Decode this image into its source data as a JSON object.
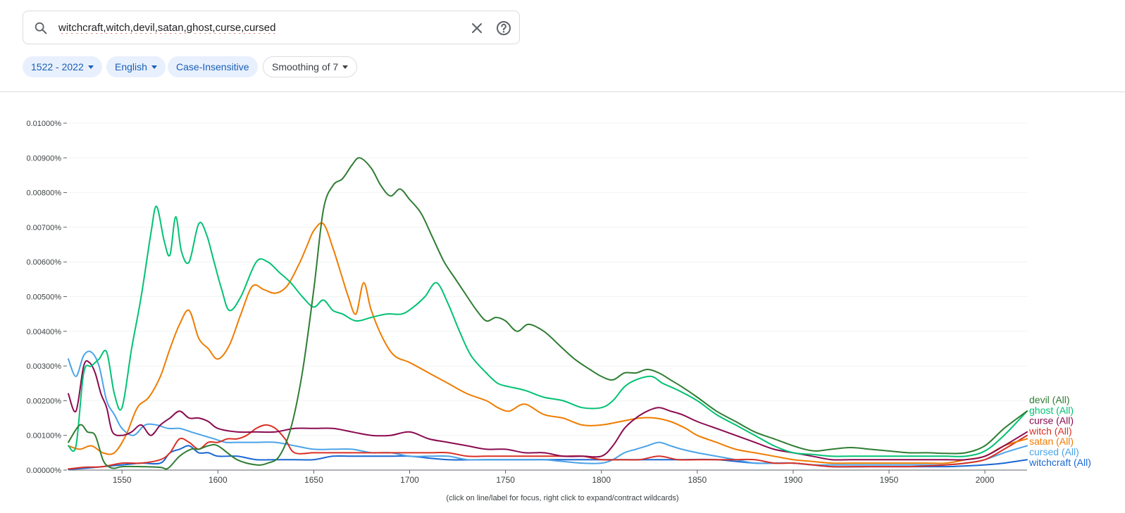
{
  "search": {
    "query": "witchcraft,witch,devil,satan,ghost,curse,cursed"
  },
  "filters": {
    "year_range": "1522 - 2022",
    "corpus": "English",
    "case": "Case-Insensitive",
    "smoothing": "Smoothing of 7"
  },
  "footer": {
    "note": "(click on line/label for focus, right click to expand/contract wildcards)"
  },
  "colors": {
    "witchcraft": "#1967d2",
    "witch": "#d93025",
    "devil": "#2e7d32",
    "satan": "#ef7c00",
    "ghost": "#00c274",
    "curse": "#8a0a4f",
    "cursed": "#4aa3e8"
  },
  "chart_data": {
    "type": "line",
    "xlim": [
      1522,
      2022
    ],
    "ylim": [
      0,
      0.01
    ],
    "x_ticks": [
      "1550",
      "1600",
      "1650",
      "1700",
      "1750",
      "1800",
      "1850",
      "1900",
      "1950",
      "2000"
    ],
    "y_ticks": [
      "0.00000%",
      "0.00100%",
      "0.00200%",
      "0.00300%",
      "0.00400%",
      "0.00500%",
      "0.00600%",
      "0.00700%",
      "0.00800%",
      "0.00900%",
      "0.01000%"
    ],
    "grid": true,
    "legend_placement": "right-end",
    "series": [
      {
        "name": "devil (All)",
        "x": [
          1522,
          1528,
          1532,
          1536,
          1540,
          1543,
          1546,
          1550,
          1560,
          1570,
          1574,
          1580,
          1586,
          1590,
          1595,
          1600,
          1610,
          1620,
          1626,
          1632,
          1638,
          1644,
          1650,
          1655,
          1660,
          1665,
          1670,
          1674,
          1680,
          1685,
          1690,
          1695,
          1700,
          1706,
          1712,
          1718,
          1724,
          1730,
          1735,
          1740,
          1745,
          1750,
          1756,
          1762,
          1770,
          1778,
          1786,
          1794,
          1800,
          1806,
          1812,
          1818,
          1824,
          1830,
          1836,
          1842,
          1850,
          1860,
          1870,
          1880,
          1890,
          1900,
          1906,
          1912,
          1920,
          1930,
          1940,
          1950,
          1960,
          1970,
          1980,
          1990,
          2000,
          2010,
          2022
        ],
        "y": [
          0.0008,
          0.0013,
          0.0011,
          0.001,
          0.0003,
          0.0001,
          5e-05,
          0.0001,
          0.0001,
          8e-05,
          5e-05,
          0.0004,
          0.0006,
          0.0006,
          0.0007,
          0.0007,
          0.0003,
          0.00015,
          0.0002,
          0.0004,
          0.0012,
          0.0028,
          0.0052,
          0.0075,
          0.0082,
          0.0084,
          0.0088,
          0.009,
          0.0087,
          0.0082,
          0.0079,
          0.0081,
          0.0078,
          0.0074,
          0.0067,
          0.006,
          0.0055,
          0.005,
          0.0046,
          0.0043,
          0.0044,
          0.0043,
          0.004,
          0.0042,
          0.004,
          0.0036,
          0.0032,
          0.0029,
          0.0027,
          0.0026,
          0.0028,
          0.0028,
          0.0029,
          0.0028,
          0.0026,
          0.0024,
          0.0021,
          0.0017,
          0.0014,
          0.0011,
          0.0009,
          0.0007,
          0.0006,
          0.00055,
          0.0006,
          0.00065,
          0.0006,
          0.00055,
          0.0005,
          0.0005,
          0.00048,
          0.0005,
          0.0007,
          0.0012,
          0.0017
        ]
      },
      {
        "name": "ghost (All)",
        "x": [
          1522,
          1526,
          1530,
          1534,
          1538,
          1542,
          1546,
          1550,
          1555,
          1560,
          1565,
          1568,
          1572,
          1575,
          1578,
          1581,
          1585,
          1590,
          1594,
          1598,
          1602,
          1606,
          1612,
          1620,
          1626,
          1632,
          1638,
          1644,
          1650,
          1655,
          1660,
          1665,
          1672,
          1680,
          1688,
          1696,
          1702,
          1708,
          1714,
          1720,
          1726,
          1732,
          1740,
          1746,
          1752,
          1760,
          1770,
          1780,
          1790,
          1800,
          1806,
          1812,
          1818,
          1826,
          1832,
          1840,
          1850,
          1860,
          1870,
          1880,
          1890,
          1900,
          1910,
          1920,
          1930,
          1940,
          1950,
          1960,
          1970,
          1980,
          1990,
          2000,
          2010,
          2022
        ],
        "y": [
          0.0007,
          0.0007,
          0.0028,
          0.003,
          0.0032,
          0.0034,
          0.0022,
          0.0018,
          0.0035,
          0.005,
          0.0068,
          0.0076,
          0.0066,
          0.0062,
          0.0073,
          0.0063,
          0.006,
          0.0071,
          0.0068,
          0.006,
          0.0052,
          0.0046,
          0.005,
          0.006,
          0.006,
          0.0057,
          0.0054,
          0.005,
          0.0047,
          0.0049,
          0.0046,
          0.0045,
          0.0043,
          0.0044,
          0.0045,
          0.0045,
          0.0047,
          0.005,
          0.0054,
          0.0048,
          0.004,
          0.0033,
          0.0028,
          0.0025,
          0.0024,
          0.0023,
          0.0021,
          0.002,
          0.0018,
          0.0018,
          0.002,
          0.0024,
          0.0026,
          0.0027,
          0.0025,
          0.0023,
          0.002,
          0.0016,
          0.0013,
          0.001,
          0.0007,
          0.0005,
          0.00045,
          0.0004,
          0.0004,
          0.0004,
          0.0004,
          0.0004,
          0.0004,
          0.0004,
          0.0004,
          0.00055,
          0.001,
          0.0017
        ]
      },
      {
        "name": "curse (All)",
        "x": [
          1522,
          1526,
          1530,
          1533,
          1536,
          1539,
          1542,
          1545,
          1550,
          1555,
          1560,
          1565,
          1570,
          1575,
          1580,
          1585,
          1590,
          1595,
          1600,
          1610,
          1620,
          1630,
          1640,
          1650,
          1660,
          1670,
          1680,
          1690,
          1700,
          1710,
          1720,
          1730,
          1740,
          1750,
          1760,
          1770,
          1780,
          1790,
          1800,
          1806,
          1812,
          1818,
          1824,
          1830,
          1836,
          1842,
          1850,
          1860,
          1870,
          1880,
          1890,
          1900,
          1910,
          1920,
          1930,
          1940,
          1950,
          1960,
          1970,
          1980,
          1990,
          2000,
          2010,
          2022
        ],
        "y": [
          0.0022,
          0.0017,
          0.003,
          0.0031,
          0.0028,
          0.0022,
          0.0018,
          0.0011,
          0.001,
          0.0011,
          0.0013,
          0.001,
          0.0013,
          0.0015,
          0.0017,
          0.0015,
          0.0015,
          0.0014,
          0.0012,
          0.0011,
          0.0011,
          0.0011,
          0.0012,
          0.0012,
          0.0012,
          0.0011,
          0.001,
          0.001,
          0.0011,
          0.0009,
          0.0008,
          0.0007,
          0.0006,
          0.0006,
          0.0005,
          0.0005,
          0.0004,
          0.0004,
          0.0004,
          0.0007,
          0.0012,
          0.0015,
          0.0017,
          0.0018,
          0.0017,
          0.0016,
          0.0014,
          0.0012,
          0.001,
          0.0008,
          0.0006,
          0.0005,
          0.0004,
          0.0003,
          0.0003,
          0.0003,
          0.0003,
          0.0003,
          0.0003,
          0.0003,
          0.0003,
          0.0004,
          0.0007,
          0.0011
        ]
      },
      {
        "name": "witch (All)",
        "x": [
          1522,
          1530,
          1540,
          1550,
          1560,
          1570,
          1575,
          1580,
          1585,
          1590,
          1595,
          1600,
          1605,
          1610,
          1615,
          1620,
          1625,
          1630,
          1635,
          1640,
          1650,
          1660,
          1670,
          1680,
          1690,
          1700,
          1710,
          1720,
          1730,
          1740,
          1750,
          1760,
          1770,
          1780,
          1790,
          1800,
          1810,
          1820,
          1830,
          1840,
          1850,
          1860,
          1870,
          1880,
          1890,
          1900,
          1910,
          1920,
          1930,
          1940,
          1950,
          1960,
          1970,
          1980,
          1990,
          2000,
          2010,
          2022
        ],
        "y": [
          3e-05,
          8e-05,
          0.0001,
          0.0002,
          0.0002,
          0.0003,
          0.0005,
          0.0009,
          0.0008,
          0.0006,
          0.0008,
          0.0008,
          0.0009,
          0.0009,
          0.001,
          0.0012,
          0.0013,
          0.0012,
          0.0009,
          0.0005,
          0.0005,
          0.0005,
          0.0005,
          0.0005,
          0.0005,
          0.0005,
          0.0005,
          0.0005,
          0.0004,
          0.0004,
          0.0004,
          0.0004,
          0.0004,
          0.0004,
          0.0004,
          0.0003,
          0.0003,
          0.0003,
          0.0004,
          0.0003,
          0.0003,
          0.0003,
          0.0003,
          0.0003,
          0.0002,
          0.0002,
          0.00015,
          0.0001,
          0.0001,
          0.0001,
          0.0001,
          0.0001,
          0.00012,
          0.00015,
          0.0002,
          0.0003,
          0.0006,
          0.001
        ]
      },
      {
        "name": "satan (All)",
        "x": [
          1522,
          1528,
          1534,
          1540,
          1546,
          1552,
          1558,
          1564,
          1570,
          1575,
          1580,
          1585,
          1590,
          1595,
          1600,
          1606,
          1612,
          1618,
          1624,
          1630,
          1636,
          1642,
          1646,
          1650,
          1655,
          1660,
          1664,
          1668,
          1672,
          1676,
          1680,
          1686,
          1692,
          1700,
          1710,
          1720,
          1730,
          1740,
          1746,
          1752,
          1760,
          1770,
          1780,
          1790,
          1800,
          1810,
          1820,
          1828,
          1836,
          1844,
          1850,
          1860,
          1870,
          1880,
          1890,
          1900,
          1910,
          1920,
          1930,
          1940,
          1950,
          1960,
          1970,
          1980,
          1990,
          2000,
          2010,
          2022
        ],
        "y": [
          0.0007,
          0.0006,
          0.0007,
          0.0005,
          0.0005,
          0.001,
          0.0018,
          0.0021,
          0.0027,
          0.0035,
          0.0042,
          0.0046,
          0.0038,
          0.0035,
          0.0032,
          0.0036,
          0.0045,
          0.0053,
          0.0052,
          0.0051,
          0.0053,
          0.0059,
          0.0064,
          0.0069,
          0.0071,
          0.0064,
          0.0057,
          0.005,
          0.0045,
          0.0054,
          0.0046,
          0.0038,
          0.0033,
          0.0031,
          0.0028,
          0.0025,
          0.0022,
          0.002,
          0.0018,
          0.0017,
          0.0019,
          0.0016,
          0.0015,
          0.0013,
          0.0013,
          0.0014,
          0.0015,
          0.0015,
          0.0014,
          0.0012,
          0.001,
          0.0008,
          0.0006,
          0.0005,
          0.0004,
          0.0003,
          0.00025,
          0.0002,
          0.0002,
          0.0002,
          0.0002,
          0.0002,
          0.0002,
          0.0002,
          0.0003,
          0.0004,
          0.0007,
          0.0009
        ]
      },
      {
        "name": "cursed (All)",
        "x": [
          1522,
          1526,
          1530,
          1534,
          1538,
          1542,
          1546,
          1550,
          1556,
          1562,
          1568,
          1574,
          1580,
          1586,
          1592,
          1598,
          1604,
          1610,
          1620,
          1630,
          1640,
          1650,
          1660,
          1670,
          1680,
          1690,
          1700,
          1710,
          1720,
          1730,
          1740,
          1750,
          1760,
          1770,
          1780,
          1790,
          1800,
          1806,
          1812,
          1818,
          1824,
          1830,
          1836,
          1842,
          1850,
          1860,
          1870,
          1880,
          1890,
          1900,
          1910,
          1920,
          1930,
          1940,
          1950,
          1960,
          1970,
          1980,
          1990,
          2000,
          2010,
          2022
        ],
        "y": [
          0.0032,
          0.0027,
          0.0033,
          0.0034,
          0.003,
          0.002,
          0.0016,
          0.0012,
          0.001,
          0.0013,
          0.0013,
          0.0012,
          0.0012,
          0.0011,
          0.001,
          0.0009,
          0.0008,
          0.0008,
          0.0008,
          0.0008,
          0.0007,
          0.0006,
          0.0006,
          0.0006,
          0.0005,
          0.0005,
          0.0004,
          0.0004,
          0.0004,
          0.0003,
          0.0003,
          0.0003,
          0.0003,
          0.0003,
          0.00025,
          0.0002,
          0.0002,
          0.0003,
          0.0005,
          0.0006,
          0.0007,
          0.0008,
          0.0007,
          0.0006,
          0.0005,
          0.0004,
          0.0003,
          0.0002,
          0.0002,
          0.0002,
          0.00015,
          0.00015,
          0.00015,
          0.00015,
          0.00015,
          0.00015,
          0.00015,
          0.00015,
          0.0002,
          0.0003,
          0.0005,
          0.0007
        ]
      },
      {
        "name": "witchcraft (All)",
        "x": [
          1522,
          1530,
          1540,
          1550,
          1560,
          1570,
          1575,
          1580,
          1585,
          1590,
          1595,
          1600,
          1610,
          1620,
          1630,
          1640,
          1650,
          1660,
          1670,
          1680,
          1690,
          1700,
          1720,
          1740,
          1760,
          1780,
          1800,
          1820,
          1840,
          1860,
          1880,
          1900,
          1920,
          1940,
          1960,
          1980,
          1990,
          2000,
          2010,
          2022
        ],
        "y": [
          2e-05,
          5e-05,
          0.0001,
          0.00015,
          0.0002,
          0.0002,
          0.0005,
          0.0006,
          0.0007,
          0.0005,
          0.0005,
          0.0004,
          0.0004,
          0.0003,
          0.0003,
          0.0003,
          0.0003,
          0.0004,
          0.0004,
          0.0004,
          0.0004,
          0.0004,
          0.0003,
          0.0003,
          0.0003,
          0.0003,
          0.0003,
          0.0003,
          0.0003,
          0.0003,
          0.0002,
          0.0002,
          0.0001,
          0.0001,
          0.0001,
          0.0001,
          0.00012,
          0.00015,
          0.0002,
          0.0003
        ]
      }
    ],
    "legend": [
      {
        "label": "devil (All)",
        "key": "devil"
      },
      {
        "label": "ghost (All)",
        "key": "ghost"
      },
      {
        "label": "curse (All)",
        "key": "curse"
      },
      {
        "label": "witch (All)",
        "key": "witch"
      },
      {
        "label": "satan (All)",
        "key": "satan"
      },
      {
        "label": "cursed (All)",
        "key": "cursed"
      },
      {
        "label": "witchcraft (All)",
        "key": "witchcraft"
      }
    ]
  }
}
